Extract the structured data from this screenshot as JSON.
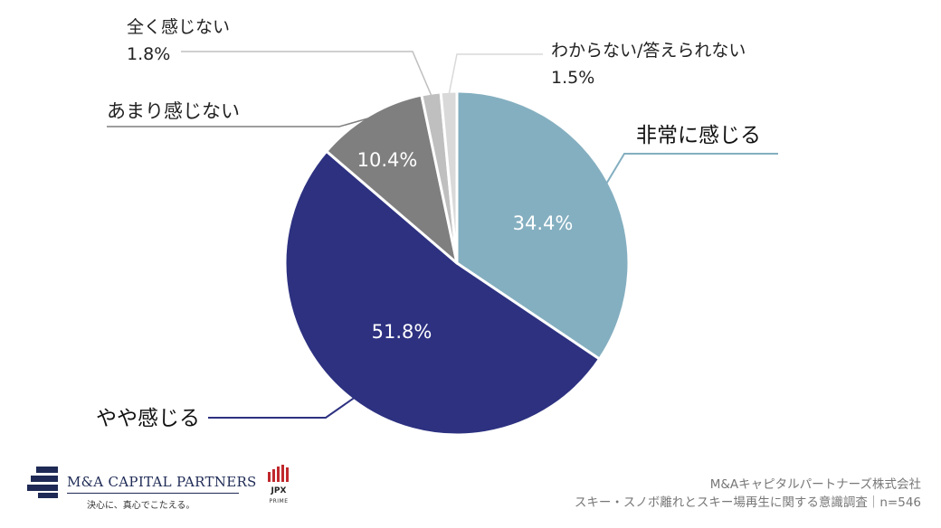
{
  "chart_data": {
    "type": "pie",
    "slices": [
      {
        "name": "非常に感じる",
        "value": 34.4,
        "label": "34.4%",
        "color": "#84afc0"
      },
      {
        "name": "やや感じる",
        "value": 51.8,
        "label": "51.8%",
        "color": "#2d3180"
      },
      {
        "name": "あまり感じない",
        "value": 10.4,
        "label": "10.4%",
        "color": "#7f7f7f"
      },
      {
        "name": "全く感じない",
        "value": 1.8,
        "label": "1.8%",
        "color": "#bfbfbf"
      },
      {
        "name": "わからない/答えられない",
        "value": 1.5,
        "label": "1.5%",
        "color": "#d9d9d9"
      }
    ],
    "start": "12 o'clock",
    "direction": "clockwise"
  },
  "footer": {
    "company_logo_text": "M&A CAPITAL PARTNERS",
    "tagline": "決心に、真心でこたえる。",
    "jpx_label": "JPX",
    "jpx_sub": "PRIME",
    "source_line1": "M&Aキャピタルパートナーズ株式会社",
    "source_line2": "スキー・スノボ離れとスキー場再生に関する意識調査｜n=546"
  }
}
